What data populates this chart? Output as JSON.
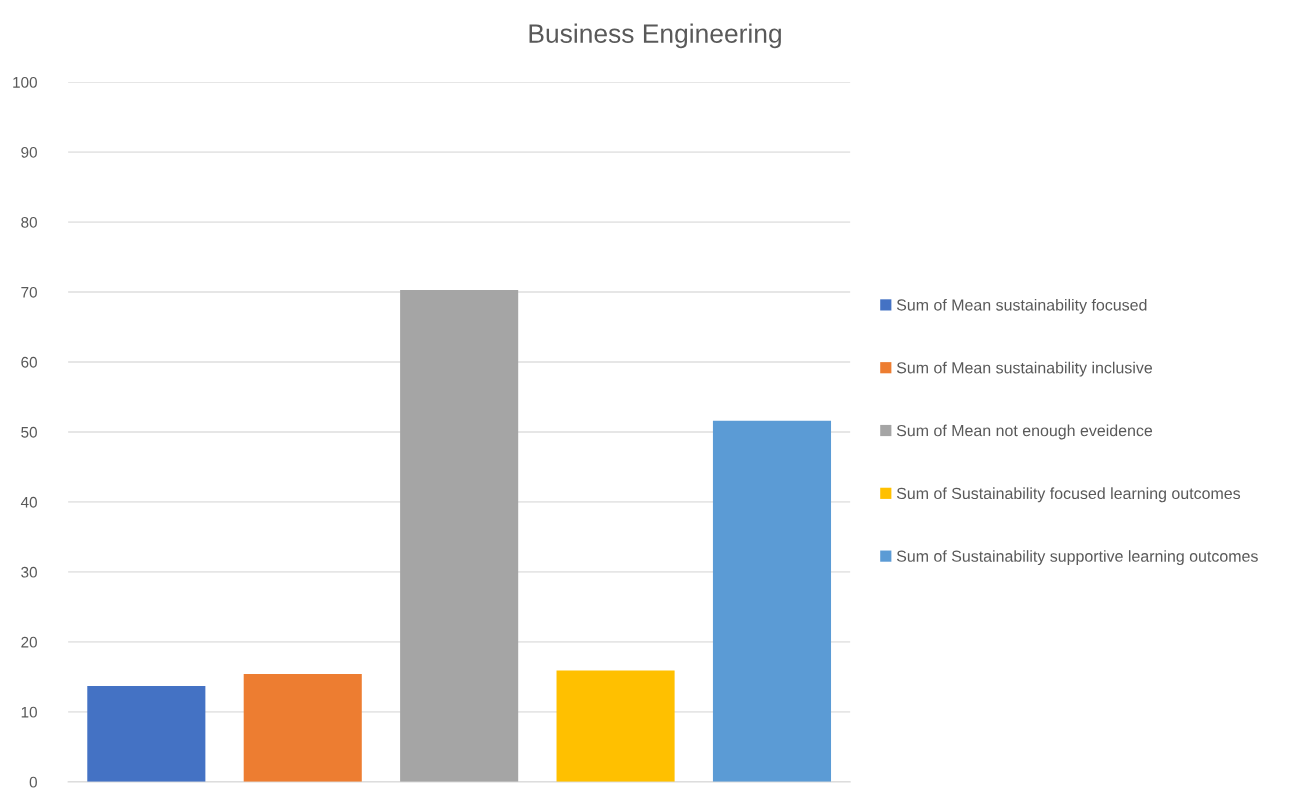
{
  "chart_data": {
    "type": "bar",
    "title": "Business Engineering",
    "categories": [
      null
    ],
    "series": [
      {
        "name": "Sum of Mean sustainability focused",
        "color": "#4472c4",
        "values": [
          13.7
        ]
      },
      {
        "name": "Sum of Mean sustainability inclusive",
        "color": "#ed7d31",
        "values": [
          15.4
        ]
      },
      {
        "name": "Sum of Mean not enough eveidence",
        "color": "#a5a5a5",
        "values": [
          70.3
        ]
      },
      {
        "name": "Sum of Sustainability focused learning outcomes",
        "color": "#ffc000",
        "values": [
          15.9
        ]
      },
      {
        "name": "Sum of Sustainability supportive learning outcomes",
        "color": "#5b9bd5",
        "values": [
          51.6
        ]
      }
    ],
    "ylim": [
      0,
      100
    ],
    "yticks": [
      0,
      10,
      20,
      30,
      40,
      50,
      60,
      70,
      80,
      90,
      100
    ],
    "grid": "y",
    "legend": "right"
  }
}
